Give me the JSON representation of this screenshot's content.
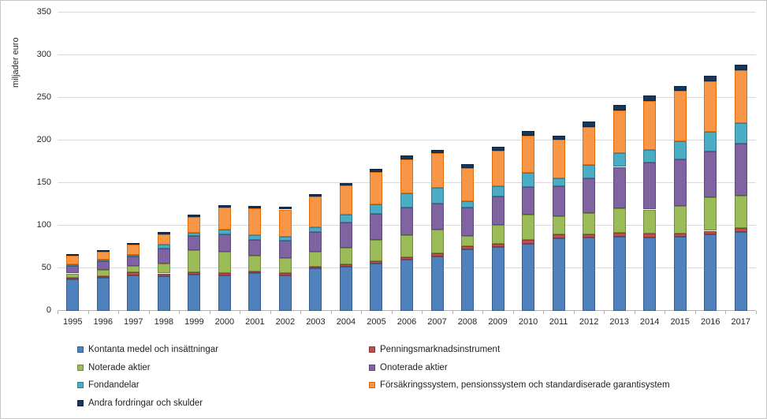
{
  "chart_data": {
    "type": "bar",
    "stacked": true,
    "title": "",
    "y_axis_title": "miljader euro",
    "xlabel": "",
    "ylabel": "miljader euro",
    "ylim": [
      0,
      350
    ],
    "y_ticks": [
      0,
      50,
      100,
      150,
      200,
      250,
      300,
      350
    ],
    "grid": "horizontal light gray",
    "legend_position": "bottom, two columns",
    "categories": [
      "1995",
      "1996",
      "1997",
      "1998",
      "1999",
      "2000",
      "2001",
      "2002",
      "2003",
      "2004",
      "2005",
      "2006",
      "2007",
      "2008",
      "2009",
      "2010",
      "2011",
      "2012",
      "2013",
      "2014",
      "2015",
      "2016",
      "2017"
    ],
    "series": [
      {
        "name": "Kontanta medel och insättningar",
        "color": "#4F81BD",
        "border_color": "#385D8A",
        "values": [
          37,
          39,
          42,
          41,
          43,
          42,
          44,
          42,
          50,
          52,
          56,
          60,
          64,
          72,
          75,
          79,
          85,
          86,
          87,
          86,
          87,
          90,
          93
        ]
      },
      {
        "name": "Penningsmarknadsinstrument",
        "color": "#C0504D",
        "border_color": "#8C3836",
        "values": [
          2,
          2,
          3,
          3,
          2,
          2,
          2,
          2,
          2,
          3,
          2,
          3,
          4,
          4,
          4,
          4,
          5,
          4,
          5,
          5,
          4,
          4,
          4
        ]
      },
      {
        "name": "Noterade aktier",
        "color": "#9BBB59",
        "border_color": "#71893F",
        "values": [
          5,
          7,
          8,
          12,
          26,
          25,
          19,
          18,
          17,
          19,
          25,
          26,
          27,
          12,
          22,
          30,
          21,
          25,
          28,
          28,
          32,
          39,
          38
        ]
      },
      {
        "name": "Onoterade aktier",
        "color": "#8064A2",
        "border_color": "#5E4A79",
        "values": [
          9,
          10,
          11,
          17,
          17,
          21,
          18,
          20,
          24,
          30,
          31,
          32,
          31,
          33,
          33,
          32,
          35,
          41,
          49,
          55,
          55,
          54,
          61
        ]
      },
      {
        "name": "Fondandelar",
        "color": "#4BACC6",
        "border_color": "#357D91",
        "values": [
          2,
          2,
          2,
          5,
          4,
          5,
          6,
          5,
          5,
          9,
          11,
          17,
          18,
          8,
          12,
          17,
          10,
          15,
          16,
          15,
          21,
          23,
          24
        ]
      },
      {
        "name": "Försäkringssystem, pensionssystem och standardiserade garantisystem",
        "color": "#F79646",
        "border_color": "#E36C09",
        "values": [
          10,
          9,
          12,
          12,
          18,
          26,
          31,
          32,
          36,
          34,
          38,
          40,
          41,
          39,
          42,
          44,
          45,
          45,
          50,
          57,
          59,
          59,
          62
        ]
      },
      {
        "name": "Andra fordringar och skulder",
        "color": "#17375D",
        "border_color": "#0F243E",
        "values": [
          2,
          2,
          2,
          3,
          3,
          3,
          3,
          3,
          3,
          3,
          4,
          4,
          4,
          4,
          5,
          5,
          5,
          6,
          7,
          7,
          6,
          7,
          7
        ]
      }
    ],
    "legend_columns": {
      "left": [
        0,
        2,
        4,
        6
      ],
      "right": [
        1,
        3,
        5
      ]
    }
  }
}
